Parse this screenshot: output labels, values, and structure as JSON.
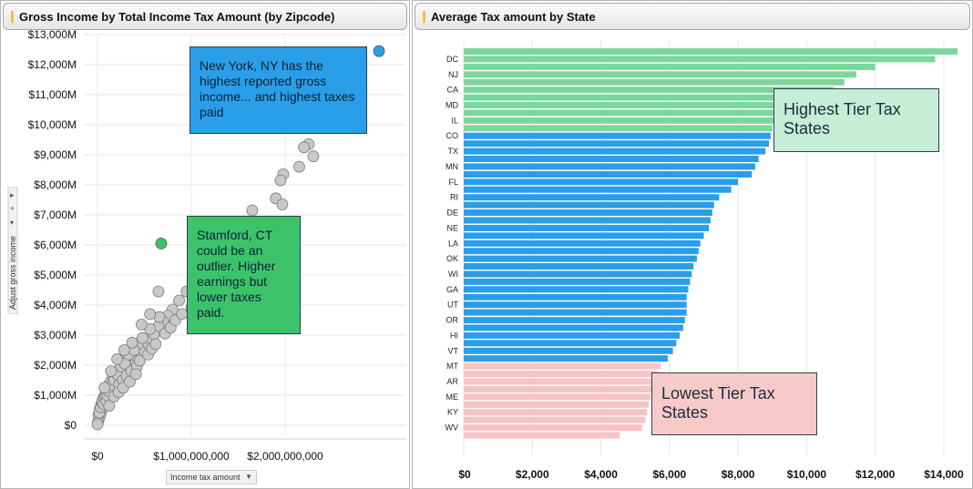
{
  "left_panel": {
    "title": "Gross Income by Total Income Tax Amount (by Zipcode)",
    "y_axis_title": "Adjust gross income",
    "x_axis_title": "Income tax amount",
    "y_tick_labels": [
      "$0",
      "$1,000M",
      "$2,000M",
      "$3,000M",
      "$4,000M",
      "$5,000M",
      "$6,000M",
      "$7,000M",
      "$8,000M",
      "$9,000M",
      "$10,000M",
      "$11,000M",
      "$12,000M",
      "$13,000M"
    ],
    "x_tick_labels": [
      "$0",
      "$1,000,000,000",
      "$2,000,000,000"
    ],
    "callout_blue": "New York, NY has the highest reported gross income... and highest taxes paid",
    "callout_green": "Stamford, CT could be an outlier.  Higher earnings but lower taxes paid.",
    "colors": {
      "point": "#c8c8c8",
      "point_stroke": "#7a7a7a",
      "highlight_blue": "#2a9ee8",
      "highlight_green": "#3cc36a",
      "callout_blue": "#2a9ee8",
      "callout_green": "#3cc36a"
    }
  },
  "right_panel": {
    "title": "Average Tax amount by State",
    "callout_high": "Highest Tier Tax States",
    "callout_low": "Lowest Tier Tax States",
    "colors": {
      "high": "#7dd69c",
      "mid": "#2a9ee8",
      "low": "#f7c3c3",
      "callout_high_bg": "#c6edd5",
      "callout_low_bg": "#f7caca"
    }
  },
  "chart_data": [
    {
      "type": "scatter",
      "title": "Gross Income by Total Income Tax Amount (by Zipcode)",
      "xlabel": "Income tax amount",
      "ylabel": "Adjust gross income",
      "xlim": [
        -50000000,
        3300000000
      ],
      "ylim": [
        -300,
        13000
      ],
      "x_unit": "dollars",
      "y_unit": "millions of dollars",
      "grid": true,
      "highlights": [
        {
          "x": 3000000000,
          "y": 12450,
          "color": "#2a9ee8"
        },
        {
          "x": 680000000,
          "y": 6050,
          "color": "#3cc36a"
        }
      ],
      "points": [
        [
          2800000000,
          10950
        ],
        [
          2250000000,
          9350
        ],
        [
          2300000000,
          8950
        ],
        [
          2200000000,
          9250
        ],
        [
          2150000000,
          8600
        ],
        [
          1980000000,
          8350
        ],
        [
          1950000000,
          8150
        ],
        [
          1900000000,
          7550
        ],
        [
          1970000000,
          7350
        ],
        [
          1650000000,
          7150
        ],
        [
          1700000000,
          6700
        ],
        [
          1850000000,
          6250
        ],
        [
          1400000000,
          5450
        ],
        [
          1450000000,
          5000
        ],
        [
          1600000000,
          4950
        ],
        [
          1300000000,
          5150
        ],
        [
          1200000000,
          4750
        ],
        [
          1100000000,
          4350
        ],
        [
          950000000,
          4450
        ],
        [
          870000000,
          4150
        ],
        [
          800000000,
          3850
        ],
        [
          1000000000,
          3900
        ],
        [
          750000000,
          3650
        ],
        [
          700000000,
          3450
        ],
        [
          650000000,
          3300
        ],
        [
          600000000,
          3000
        ],
        [
          560000000,
          3200
        ],
        [
          520000000,
          2800
        ],
        [
          500000000,
          2600
        ],
        [
          460000000,
          2450
        ],
        [
          430000000,
          2700
        ],
        [
          400000000,
          2300
        ],
        [
          380000000,
          2150
        ],
        [
          350000000,
          2000
        ],
        [
          320000000,
          1900
        ],
        [
          300000000,
          2200
        ],
        [
          280000000,
          1750
        ],
        [
          260000000,
          1650
        ],
        [
          240000000,
          1850
        ],
        [
          220000000,
          1550
        ],
        [
          200000000,
          1450
        ],
        [
          190000000,
          1700
        ],
        [
          170000000,
          1300
        ],
        [
          160000000,
          1550
        ],
        [
          140000000,
          1200
        ],
        [
          130000000,
          1400
        ],
        [
          120000000,
          1050
        ],
        [
          110000000,
          1250
        ],
        [
          100000000,
          900
        ],
        [
          90000000,
          1100
        ],
        [
          80000000,
          800
        ],
        [
          70000000,
          950
        ],
        [
          60000000,
          650
        ],
        [
          55000000,
          850
        ],
        [
          45000000,
          500
        ],
        [
          40000000,
          700
        ],
        [
          30000000,
          350
        ],
        [
          25000000,
          550
        ],
        [
          15000000,
          200
        ],
        [
          10000000,
          350
        ],
        [
          5000000,
          100
        ],
        [
          0,
          30
        ],
        [
          20000000,
          420
        ],
        [
          35000000,
          600
        ],
        [
          50000000,
          750
        ],
        [
          65000000,
          700
        ],
        [
          85000000,
          950
        ],
        [
          95000000,
          800
        ],
        [
          105000000,
          1000
        ],
        [
          115000000,
          1150
        ],
        [
          150000000,
          1350
        ],
        [
          180000000,
          1500
        ],
        [
          210000000,
          1700
        ],
        [
          230000000,
          1350
        ],
        [
          250000000,
          1950
        ],
        [
          270000000,
          1500
        ],
        [
          290000000,
          2050
        ],
        [
          310000000,
          1650
        ],
        [
          330000000,
          2350
        ],
        [
          360000000,
          1800
        ],
        [
          390000000,
          2500
        ],
        [
          420000000,
          1950
        ],
        [
          450000000,
          2150
        ],
        [
          480000000,
          2900
        ],
        [
          540000000,
          2350
        ],
        [
          580000000,
          2550
        ],
        [
          620000000,
          2700
        ],
        [
          660000000,
          3600
        ],
        [
          720000000,
          3050
        ],
        [
          780000000,
          3250
        ],
        [
          830000000,
          3500
        ],
        [
          900000000,
          3700
        ],
        [
          650000000,
          4450
        ],
        [
          560000000,
          3700
        ],
        [
          470000000,
          3350
        ],
        [
          75000000,
          1250
        ],
        [
          125000000,
          650
        ],
        [
          175000000,
          950
        ],
        [
          225000000,
          1100
        ],
        [
          275000000,
          1250
        ],
        [
          345000000,
          1450
        ],
        [
          410000000,
          1700
        ],
        [
          370000000,
          2750
        ],
        [
          285000000,
          2500
        ],
        [
          210000000,
          2200
        ],
        [
          145000000,
          1800
        ]
      ]
    },
    {
      "type": "bar",
      "orientation": "horizontal",
      "title": "Average Tax amount by State",
      "xlim": [
        0,
        14500
      ],
      "x_tick_labels": [
        "$0",
        "$2,000",
        "$4,000",
        "$6,000",
        "$8,000",
        "$10,000",
        "$12,000",
        "$14,000"
      ],
      "grid": true,
      "categories": [
        "",
        "DC",
        "",
        "NJ",
        "",
        "CA",
        "",
        "MD",
        "",
        "IL",
        "",
        "CO",
        "",
        "TX",
        "",
        "MN",
        "",
        "FL",
        "",
        "RI",
        "",
        "DE",
        "",
        "NE",
        "",
        "LA",
        "",
        "OK",
        "",
        "WI",
        "",
        "GA",
        "",
        "UT",
        "",
        "OR",
        "",
        "HI",
        "",
        "VT",
        "",
        "MT",
        "",
        "AR",
        "",
        "ME",
        "",
        "KY",
        "",
        "WV",
        ""
      ],
      "values": [
        14400,
        13750,
        12000,
        11450,
        11100,
        10800,
        10450,
        10200,
        9600,
        9250,
        9000,
        8950,
        8900,
        8800,
        8600,
        8500,
        8400,
        8000,
        7800,
        7450,
        7300,
        7250,
        7200,
        7150,
        7000,
        6900,
        6850,
        6800,
        6700,
        6650,
        6600,
        6550,
        6500,
        6500,
        6500,
        6450,
        6400,
        6300,
        6200,
        6100,
        5950,
        5750,
        5650,
        5600,
        5550,
        5450,
        5400,
        5350,
        5300,
        5200,
        4550
      ],
      "tiers": [
        "high",
        "high",
        "high",
        "high",
        "high",
        "high",
        "high",
        "high",
        "high",
        "high",
        "high",
        "mid",
        "mid",
        "mid",
        "mid",
        "mid",
        "mid",
        "mid",
        "mid",
        "mid",
        "mid",
        "mid",
        "mid",
        "mid",
        "mid",
        "mid",
        "mid",
        "mid",
        "mid",
        "mid",
        "mid",
        "mid",
        "mid",
        "mid",
        "mid",
        "mid",
        "mid",
        "mid",
        "mid",
        "mid",
        "mid",
        "low",
        "low",
        "low",
        "low",
        "low",
        "low",
        "low",
        "low",
        "low",
        "low"
      ]
    }
  ]
}
